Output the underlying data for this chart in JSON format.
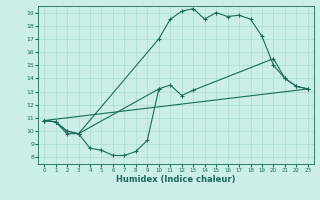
{
  "bg_color": "#cceee8",
  "line_color": "#1a6b5a",
  "grid_color": "#aaddcc",
  "xlabel": "Humidex (Indice chaleur)",
  "xlim": [
    -0.5,
    23.5
  ],
  "ylim": [
    7.5,
    19.5
  ],
  "yticks": [
    8,
    9,
    10,
    11,
    12,
    13,
    14,
    15,
    16,
    17,
    18,
    19
  ],
  "xticks": [
    0,
    1,
    2,
    3,
    4,
    5,
    6,
    7,
    8,
    9,
    10,
    11,
    12,
    13,
    14,
    15,
    16,
    17,
    18,
    19,
    20,
    21,
    22,
    23
  ],
  "line1_x": [
    0,
    1,
    2,
    3,
    10,
    11,
    12,
    13,
    14,
    15,
    16,
    17,
    18,
    19,
    20,
    21,
    22,
    23
  ],
  "line1_y": [
    10.8,
    10.7,
    10.0,
    9.8,
    17.0,
    18.5,
    19.1,
    19.3,
    18.5,
    19.0,
    18.7,
    18.8,
    18.5,
    17.2,
    15.0,
    14.0,
    13.4,
    13.2
  ],
  "line2_x": [
    0,
    1,
    2,
    3,
    10,
    11,
    12,
    13,
    20,
    21,
    22,
    23
  ],
  "line2_y": [
    10.8,
    10.7,
    10.0,
    9.8,
    13.2,
    13.5,
    12.7,
    13.1,
    15.5,
    14.0,
    13.4,
    13.2
  ],
  "line3_x": [
    0,
    23
  ],
  "line3_y": [
    10.8,
    13.2
  ],
  "line4_x": [
    0,
    1,
    2,
    3,
    4,
    5,
    6,
    7,
    8,
    9,
    10
  ],
  "line4_y": [
    10.8,
    10.7,
    9.8,
    9.8,
    8.7,
    8.55,
    8.15,
    8.15,
    8.45,
    9.3,
    13.2
  ]
}
